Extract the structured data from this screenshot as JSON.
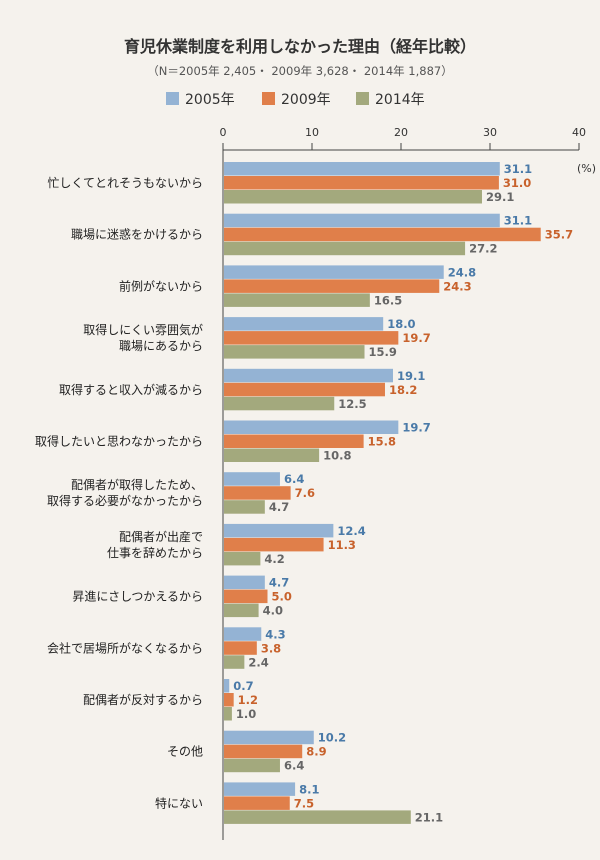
{
  "chart_data": {
    "type": "bar",
    "orientation": "horizontal",
    "title": "育児休業制度を利用しなかった理由（経年比較）",
    "subtitle": "（N＝2005年 2,405・ 2009年 3,628・ 2014年 1,887）",
    "unit": "(%)",
    "xlim": [
      0,
      40
    ],
    "ticks": [
      0,
      10,
      20,
      30,
      40
    ],
    "grid": false,
    "legend_position": "top",
    "categories": [
      [
        "忙しくてとれそうもないから"
      ],
      [
        "職場に迷惑をかけるから"
      ],
      [
        "前例がないから"
      ],
      [
        "取得しにくい雰囲気が",
        "職場にあるから"
      ],
      [
        "取得すると収入が減るから"
      ],
      [
        "取得したいと思わなかったから"
      ],
      [
        "配偶者が取得したため、",
        "取得する必要がなかったから"
      ],
      [
        "配偶者が出産で",
        "仕事を辞めたから"
      ],
      [
        "昇進にさしつかえるから"
      ],
      [
        "会社で居場所がなくなるから"
      ],
      [
        "配偶者が反対するから"
      ],
      [
        "その他"
      ],
      [
        "特にない"
      ]
    ],
    "series": [
      {
        "name": "2005年",
        "color": "#94b3d4",
        "label_color": "#4a7aa8",
        "values": [
          31.1,
          31.1,
          24.8,
          18.0,
          19.1,
          19.7,
          6.4,
          12.4,
          4.7,
          4.3,
          0.7,
          10.2,
          8.1
        ],
        "labels": [
          "31.1",
          "31.1",
          "24.8",
          "18.0",
          "19.1",
          "19.7",
          "6.4",
          "12.4",
          "4.7",
          "4.3",
          "0.7",
          "10.2",
          "8.1"
        ]
      },
      {
        "name": "2009年",
        "color": "#e07f4a",
        "label_color": "#c8622c",
        "values": [
          31.0,
          35.7,
          24.3,
          19.7,
          18.2,
          15.8,
          7.6,
          11.3,
          5.0,
          3.8,
          1.2,
          8.9,
          7.5
        ],
        "labels": [
          "31.0",
          "35.7",
          "24.3",
          "19.7",
          "18.2",
          "15.8",
          "7.6",
          "11.3",
          "5.0",
          "3.8",
          "1.2",
          "8.9",
          "7.5"
        ]
      },
      {
        "name": "2014年",
        "color": "#a3a97d",
        "label_color": "#666666",
        "values": [
          29.1,
          27.2,
          16.5,
          15.9,
          12.5,
          10.8,
          4.7,
          4.2,
          4.0,
          2.4,
          1.0,
          6.4,
          21.1
        ],
        "labels": [
          "29.1",
          "27.2",
          "16.5",
          "15.9",
          "12.5",
          "10.8",
          "4.7",
          "4.2",
          "4.0",
          "2.4",
          "1.0",
          "6.4",
          "21.1"
        ]
      }
    ]
  }
}
